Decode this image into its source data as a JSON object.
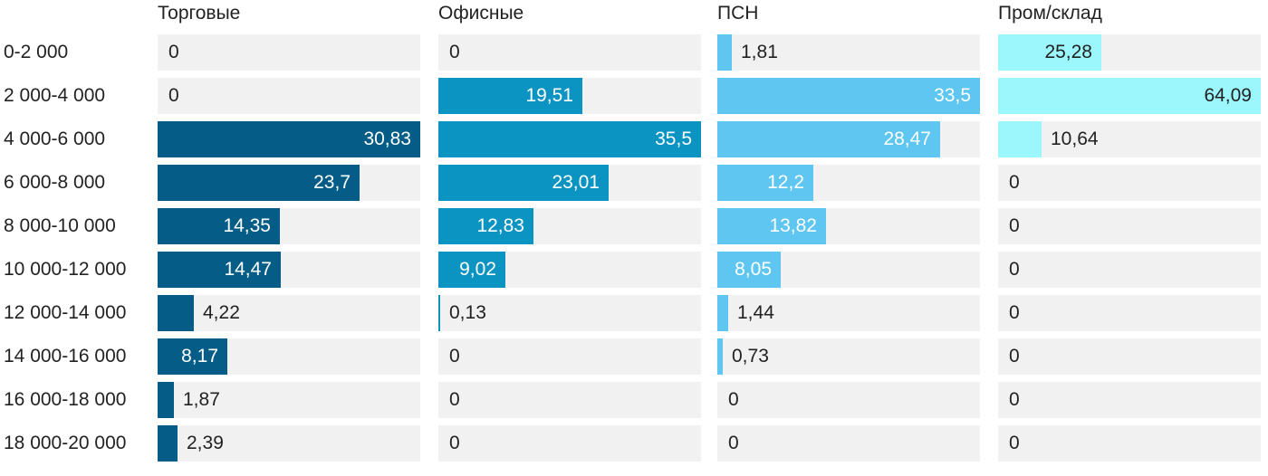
{
  "chart_data": {
    "type": "bar",
    "orientation": "horizontal",
    "layout": "small-multiples",
    "categories": [
      "0-2 000",
      "2 000-4 000",
      "4 000-6 000",
      "6 000-8 000",
      "8 000-10 000",
      "10 000-12 000",
      "12 000-14 000",
      "14 000-16 000",
      "16 000-18 000",
      "18 000-20 000"
    ],
    "series": [
      {
        "name": "Торговые",
        "color": "#045c87",
        "values": [
          0,
          0,
          30.83,
          23.7,
          14.35,
          14.47,
          4.22,
          8.17,
          1.87,
          2.39
        ],
        "labels": [
          "0",
          "0",
          "30,83",
          "23,7",
          "14,35",
          "14,47",
          "4,22",
          "8,17",
          "1,87",
          "2,39"
        ],
        "max": 30.83
      },
      {
        "name": "Офисные",
        "color": "#0b93c2",
        "values": [
          0,
          19.51,
          35.5,
          23.01,
          12.83,
          9.02,
          0.13,
          0,
          0,
          0
        ],
        "labels": [
          "0",
          "19,51",
          "35,5",
          "23,01",
          "12,83",
          "9,02",
          "0,13",
          "0",
          "0",
          "0"
        ],
        "max": 35.5
      },
      {
        "name": "ПСН",
        "color": "#5ec6f1",
        "values": [
          1.81,
          33.5,
          28.47,
          12.2,
          13.82,
          8.05,
          1.44,
          0.73,
          0,
          0
        ],
        "labels": [
          "1,81",
          "33,5",
          "28,47",
          "12,2",
          "13,82",
          "8,05",
          "1,44",
          "0,73",
          "0",
          "0"
        ],
        "max": 33.5
      },
      {
        "name": "Пром/склад",
        "color": "#9bf7fc",
        "values": [
          25.28,
          64.09,
          10.64,
          0,
          0,
          0,
          0,
          0,
          0,
          0
        ],
        "labels": [
          "25,28",
          "64,09",
          "10,64",
          "0",
          "0",
          "0",
          "0",
          "0",
          "0",
          "0"
        ],
        "max": 64.09
      }
    ],
    "grid": false,
    "legend": "none"
  }
}
